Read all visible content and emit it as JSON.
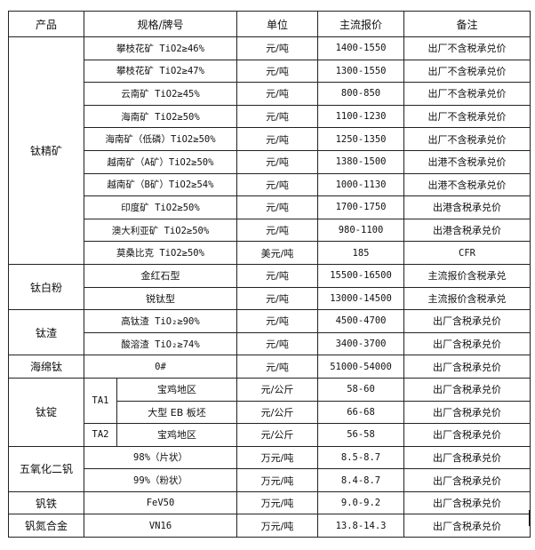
{
  "headers": [
    "产品",
    "规格/牌号",
    "单位",
    "主流报价",
    "备注"
  ],
  "groups": [
    {
      "product": "钛精矿",
      "rows": [
        {
          "spec": "攀枝花矿 TiO2≥46%",
          "unit": "元/吨",
          "price": "1400-1550",
          "note": "出厂不含税承兑价"
        },
        {
          "spec": "攀枝花矿 TiO2≥47%",
          "unit": "元/吨",
          "price": "1300-1550",
          "note": "出厂不含税承兑价"
        },
        {
          "spec": "云南矿 TiO2≥45%",
          "unit": "元/吨",
          "price": "800-850",
          "note": "出厂不含税承兑价"
        },
        {
          "spec": "海南矿 TiO2≥50%",
          "unit": "元/吨",
          "price": "1100-1230",
          "note": "出厂不含税承兑价"
        },
        {
          "spec": "海南矿（低磷）TiO2≥50%",
          "unit": "元/吨",
          "price": "1250-1350",
          "note": "出厂不含税承兑价"
        },
        {
          "spec": "越南矿（A矿）TiO2≥50%",
          "unit": "元/吨",
          "price": "1380-1500",
          "note": "出港不含税承兑价"
        },
        {
          "spec": "越南矿（B矿）TiO2≥54%",
          "unit": "元/吨",
          "price": "1000-1130",
          "note": "出港不含税承兑价"
        },
        {
          "spec": "印度矿 TiO2≥50%",
          "unit": "元/吨",
          "price": "1700-1750",
          "note": "出港含税承兑价"
        },
        {
          "spec": "澳大利亚矿 TiO2≥50%",
          "unit": "元/吨",
          "price": "980-1100",
          "note": "出港含税承兑价"
        },
        {
          "spec": "莫桑比克 TiO2≥50%",
          "unit": "美元/吨",
          "price": "185",
          "note": "CFR"
        }
      ]
    },
    {
      "product": "钛白粉",
      "rows": [
        {
          "spec": "金红石型",
          "unit": "元/吨",
          "price": "15500-16500",
          "note": "主流报价含税承兑"
        },
        {
          "spec": "锐钛型",
          "unit": "元/吨",
          "price": "13000-14500",
          "note": "主流报价含税承兑"
        }
      ]
    },
    {
      "product": "钛渣",
      "rows": [
        {
          "spec": "高钛渣 TiO₂≥90%",
          "unit": "元/吨",
          "price": "4500-4700",
          "note": "出厂含税承兑价"
        },
        {
          "spec": "酸溶渣 TiO₂≥74%",
          "unit": "元/吨",
          "price": "3400-3700",
          "note": "出厂含税承兑价"
        }
      ]
    },
    {
      "product": "海绵钛",
      "rows": [
        {
          "spec": "0#",
          "unit": "元/吨",
          "price": "51000-54000",
          "note": "出厂含税承兑价"
        }
      ]
    },
    {
      "product": "钛锭",
      "rows": [
        {
          "grade": "TA1",
          "gradeSpan": 2,
          "spec": "宝鸡地区",
          "unit": "元/公斤",
          "price": "58-60",
          "note": "出厂含税承兑价"
        },
        {
          "spec": "大型 EB 板坯",
          "unit": "元/公斤",
          "price": "66-68",
          "note": "出厂含税承兑价"
        },
        {
          "grade": "TA2",
          "gradeSpan": 1,
          "spec": "宝鸡地区",
          "unit": "元/公斤",
          "price": "56-58",
          "note": "出厂含税承兑价"
        }
      ]
    },
    {
      "product": "五氧化二钒",
      "rows": [
        {
          "spec": "98%（片状）",
          "unit": "万元/吨",
          "price": "8.5-8.7",
          "note": "出厂含税承兑价"
        },
        {
          "spec": "99%（粉状）",
          "unit": "万元/吨",
          "price": "8.4-8.7",
          "note": "出厂含税承兑价"
        }
      ]
    },
    {
      "product": "钒铁",
      "rows": [
        {
          "spec": "FeV50",
          "unit": "万元/吨",
          "price": "9.0-9.2",
          "note": "出厂含税承兑价"
        }
      ]
    },
    {
      "product": "钒氮合金",
      "rows": [
        {
          "spec": "VN16",
          "unit": "万元/吨",
          "price": "13.8-14.3",
          "note": "出厂含税承兑价"
        }
      ]
    }
  ]
}
